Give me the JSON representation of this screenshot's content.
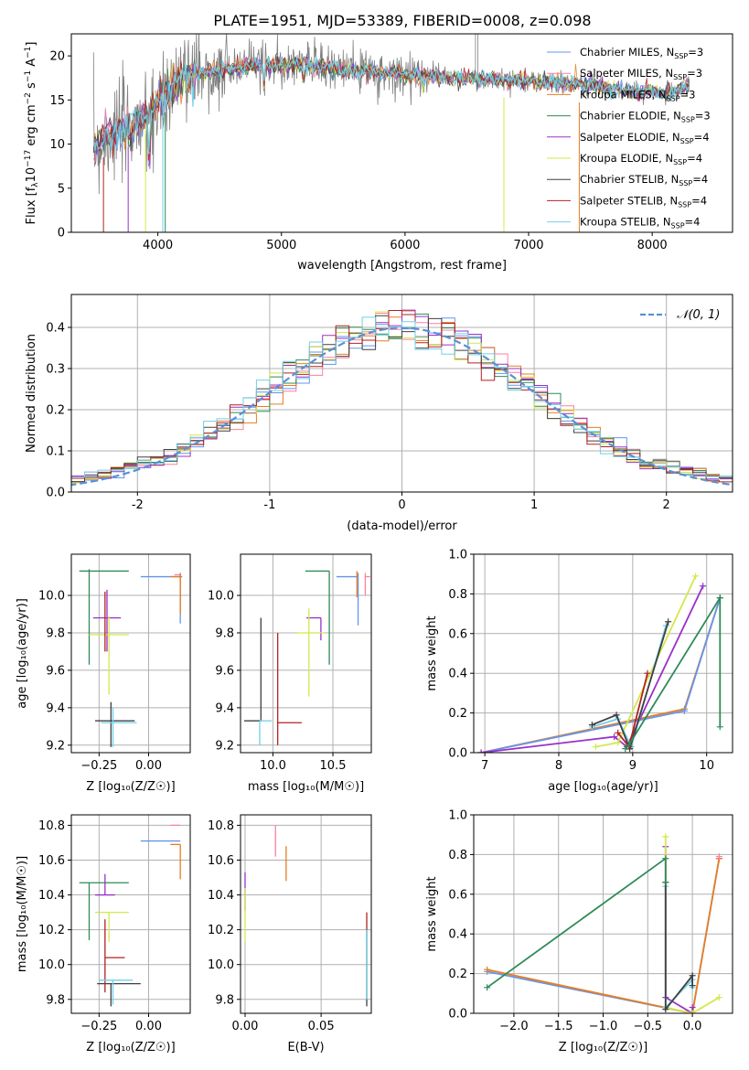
{
  "figure": {
    "title": "PLATE=1951, MJD=53389, FIBERID=0008, z=0.098"
  },
  "legend_entries": [
    {
      "name": "Chabrier MILES, N",
      "sub": "SSP",
      "tail": "=3",
      "color": "#6495ed"
    },
    {
      "name": "Salpeter MILES, N",
      "sub": "SSP",
      "tail": "=3",
      "color": "#ff7f9f"
    },
    {
      "name": "Kroupa MILES, N",
      "sub": "SSP",
      "tail": "=3",
      "color": "#e67e22"
    },
    {
      "name": "Chabrier ELODIE, N",
      "sub": "SSP",
      "tail": "=3",
      "color": "#2e8b57"
    },
    {
      "name": "Salpeter ELODIE, N",
      "sub": "SSP",
      "tail": "=4",
      "color": "#9b30c8"
    },
    {
      "name": "Kroupa ELODIE, N",
      "sub": "SSP",
      "tail": "=4",
      "color": "#d4e84a"
    },
    {
      "name": "Chabrier STELIB, N",
      "sub": "SSP",
      "tail": "=4",
      "color": "#404040"
    },
    {
      "name": "Salpeter STELIB, N",
      "sub": "SSP",
      "tail": "=4",
      "color": "#b22222"
    },
    {
      "name": "Kroupa STELIB, N",
      "sub": "SSP",
      "tail": "=4",
      "color": "#70d0e8"
    }
  ],
  "colors": {
    "data_spectrum": "#7f7f7f",
    "normal_curve": "#5b8fd6",
    "grid": "#b0b0b0"
  },
  "chart_data": [
    {
      "id": "spectrum",
      "type": "line",
      "xlabel": "wavelength [Angstrom, rest frame]",
      "ylabel": "Flux [f",
      "ylabel_full": "Flux [fλ10⁻¹⁷ erg cm⁻² s⁻¹ A⁻¹]",
      "xlim": [
        3300,
        8650
      ],
      "ylim": [
        0,
        22.5
      ],
      "xticks": [
        4000,
        5000,
        6000,
        7000,
        8000
      ],
      "yticks": [
        0,
        5,
        10,
        15,
        20
      ],
      "grid": false,
      "legend_position": "upper-right",
      "continuum_nodes": [
        [
          3480,
          9.5
        ],
        [
          3600,
          11.0
        ],
        [
          3750,
          11.5
        ],
        [
          3900,
          13.5
        ],
        [
          4050,
          15.5
        ],
        [
          4200,
          17.5
        ],
        [
          4500,
          18.5
        ],
        [
          4800,
          19.0
        ],
        [
          5100,
          19.0
        ],
        [
          5400,
          18.6
        ],
        [
          5700,
          18.3
        ],
        [
          6000,
          17.8
        ],
        [
          6300,
          17.6
        ],
        [
          6600,
          17.4
        ],
        [
          6900,
          17.2
        ],
        [
          7200,
          17.0
        ],
        [
          7500,
          16.6
        ],
        [
          7800,
          16.0
        ],
        [
          8100,
          15.8
        ],
        [
          8300,
          16.4
        ]
      ]
    },
    {
      "id": "residuals",
      "type": "bar",
      "xlabel": "(data-model)/error",
      "ylabel": "Normed distribution",
      "xlim": [
        -2.5,
        2.5
      ],
      "ylim": [
        0,
        0.48
      ],
      "xticks": [
        -2,
        -1,
        0,
        1,
        2
      ],
      "yticks": [
        0.0,
        0.1,
        0.2,
        0.3,
        0.4
      ],
      "grid": true,
      "legend_position": "upper-right",
      "legend_label": "𝒩(0, 1)",
      "bin_width": 0.1
    },
    {
      "id": "age_vs_Z",
      "type": "scatter",
      "xlabel": "Z [log₁₀(Z/Z☉)]",
      "ylabel": "age  [log₁₀(age/yr)]",
      "xlim": [
        -0.39,
        0.21
      ],
      "ylim": [
        9.16,
        10.22
      ],
      "xticks": [
        -0.25,
        0.0
      ],
      "xticklabels": [
        "−0.25",
        "0.00"
      ],
      "yticks": [
        9.2,
        9.4,
        9.6,
        9.8,
        10.0
      ],
      "grid": true,
      "points": [
        {
          "c": "#6495ed",
          "x": 0.16,
          "y": 10.1,
          "xe": [
            0.2,
            0.01
          ],
          "ye": [
            0.25,
            0.02
          ]
        },
        {
          "c": "#ff7f9f",
          "x": 0.16,
          "y": 10.11,
          "xe": [
            0.03,
            0.0
          ],
          "ye": [
            0.06,
            0.01
          ]
        },
        {
          "c": "#e67e22",
          "x": 0.16,
          "y": 10.1,
          "xe": [
            0.05,
            0.0
          ],
          "ye": [
            0.2,
            0.02
          ]
        },
        {
          "c": "#2e8b57",
          "x": -0.3,
          "y": 10.13,
          "xe": [
            0.05,
            0.2
          ],
          "ye": [
            0.5,
            0.01
          ]
        },
        {
          "c": "#9b30c8",
          "x": -0.21,
          "y": 9.88,
          "xe": [
            0.07,
            0.07
          ],
          "ye": [
            0.18,
            0.15
          ]
        },
        {
          "c": "#d4e84a",
          "x": -0.2,
          "y": 9.79,
          "xe": [
            0.1,
            0.1
          ],
          "ye": [
            0.32,
            0.1
          ]
        },
        {
          "c": "#404040",
          "x": -0.19,
          "y": 9.33,
          "xe": [
            0.08,
            0.12
          ],
          "ye": [
            0.14,
            0.1
          ]
        },
        {
          "c": "#b22222",
          "x": -0.22,
          "y": 9.82,
          "xe": [
            0.0,
            0.0
          ],
          "ye": [
            0.12,
            0.2
          ]
        },
        {
          "c": "#70d0e8",
          "x": -0.18,
          "y": 9.32,
          "xe": [
            0.06,
            0.12
          ],
          "ye": [
            0.13,
            0.08
          ]
        }
      ]
    },
    {
      "id": "age_vs_mass",
      "type": "scatter",
      "xlabel": "mass [log₁₀(M/M☉)]",
      "ylabel": "",
      "xlim": [
        9.73,
        10.82
      ],
      "ylim": [
        9.16,
        10.22
      ],
      "xticks": [
        10.0,
        10.5
      ],
      "xticklabels": [
        "10.0",
        "10.5"
      ],
      "yticks": [
        9.2,
        9.4,
        9.6,
        9.8,
        10.0
      ],
      "grid": true,
      "points": [
        {
          "c": "#6495ed",
          "x": 10.71,
          "y": 10.1,
          "xe": [
            0.18,
            0.0
          ],
          "ye": [
            0.26,
            0.02
          ]
        },
        {
          "c": "#ff7f9f",
          "x": 10.77,
          "y": 10.1,
          "xe": [
            0.0,
            0.04
          ],
          "ye": [
            0.1,
            0.02
          ]
        },
        {
          "c": "#e67e22",
          "x": 10.7,
          "y": 10.11,
          "xe": [
            0.0,
            0.01
          ],
          "ye": [
            0.12,
            0.02
          ]
        },
        {
          "c": "#2e8b57",
          "x": 10.47,
          "y": 10.13,
          "xe": [
            0.2,
            0.0
          ],
          "ye": [
            0.5,
            0.0
          ]
        },
        {
          "c": "#9b30c8",
          "x": 10.4,
          "y": 9.88,
          "xe": [
            0.12,
            0.0
          ],
          "ye": [
            0.12,
            0.0
          ]
        },
        {
          "c": "#d4e84a",
          "x": 10.3,
          "y": 9.8,
          "xe": [
            0.1,
            0.13
          ],
          "ye": [
            0.34,
            0.13
          ]
        },
        {
          "c": "#404040",
          "x": 9.9,
          "y": 9.33,
          "xe": [
            0.14,
            0.0
          ],
          "ye": [
            0.0,
            0.55
          ]
        },
        {
          "c": "#b22222",
          "x": 10.04,
          "y": 9.32,
          "xe": [
            0.0,
            0.2
          ],
          "ye": [
            0.12,
            0.48
          ]
        },
        {
          "c": "#70d0e8",
          "x": 9.89,
          "y": 9.33,
          "xe": [
            0.0,
            0.1
          ],
          "ye": [
            0.13,
            0.0
          ]
        }
      ]
    },
    {
      "id": "weight_vs_age",
      "type": "line",
      "xlabel": "age  [log₁₀(age/yr)]",
      "ylabel": "mass weight",
      "xlim": [
        6.85,
        10.35
      ],
      "ylim": [
        0,
        1.0
      ],
      "xticks": [
        7,
        8,
        9,
        10
      ],
      "yticks": [
        0.0,
        0.2,
        0.4,
        0.6,
        0.8,
        1.0
      ],
      "grid": true,
      "series": [
        {
          "c": "#e67e22",
          "pts": [
            [
              6.95,
              0.0
            ],
            [
              9.7,
              0.22
            ],
            [
              10.18,
              0.78
            ]
          ]
        },
        {
          "c": "#6495ed",
          "pts": [
            [
              6.95,
              0.0
            ],
            [
              9.7,
              0.21
            ],
            [
              10.18,
              0.78
            ]
          ]
        },
        {
          "c": "#9b30c8",
          "pts": [
            [
              6.95,
              0.0
            ],
            [
              8.75,
              0.08
            ],
            [
              8.92,
              0.03
            ],
            [
              9.95,
              0.84
            ]
          ]
        },
        {
          "c": "#d4e84a",
          "pts": [
            [
              8.5,
              0.03
            ],
            [
              8.8,
              0.05
            ],
            [
              9.85,
              0.89
            ]
          ]
        },
        {
          "c": "#70d0e8",
          "pts": [
            [
              8.45,
              0.13
            ],
            [
              8.8,
              0.17
            ],
            [
              8.98,
              0.03
            ],
            [
              9.45,
              0.64
            ]
          ]
        },
        {
          "c": "#404040",
          "pts": [
            [
              8.45,
              0.14
            ],
            [
              8.78,
              0.19
            ],
            [
              8.96,
              0.02
            ],
            [
              9.48,
              0.66
            ]
          ]
        },
        {
          "c": "#b22222",
          "pts": [
            [
              8.8,
              0.1
            ],
            [
              8.95,
              0.03
            ],
            [
              9.2,
              0.4
            ]
          ]
        },
        {
          "c": "#2e8b57",
          "pts": [
            [
              8.9,
              0.02
            ],
            [
              8.95,
              0.04
            ],
            [
              10.18,
              0.78
            ],
            [
              10.18,
              0.13
            ]
          ]
        }
      ]
    },
    {
      "id": "mass_vs_Z",
      "type": "scatter",
      "xlabel": "Z [log₁₀(Z/Z☉)]",
      "ylabel": "mass [log₁₀(M/M☉)]",
      "xlim": [
        -0.39,
        0.21
      ],
      "ylim": [
        9.72,
        10.86
      ],
      "xticks": [
        -0.25,
        0.0
      ],
      "xticklabels": [
        "−0.25",
        "0.00"
      ],
      "yticks": [
        9.8,
        10.0,
        10.2,
        10.4,
        10.6,
        10.8
      ],
      "grid": true,
      "points": [
        {
          "c": "#6495ed",
          "x": 0.16,
          "y": 10.71,
          "xe": [
            0.2,
            0.0
          ],
          "ye": [
            0.0,
            0.0
          ]
        },
        {
          "c": "#ff7f9f",
          "x": 0.16,
          "y": 10.8,
          "xe": [
            0.05,
            0.0
          ],
          "ye": [
            0.0,
            0.0
          ]
        },
        {
          "c": "#e67e22",
          "x": 0.16,
          "y": 10.69,
          "xe": [
            0.05,
            0.0
          ],
          "ye": [
            0.2,
            0.0
          ]
        },
        {
          "c": "#2e8b57",
          "x": -0.3,
          "y": 10.47,
          "xe": [
            0.05,
            0.2
          ],
          "ye": [
            0.33,
            0.0
          ]
        },
        {
          "c": "#9b30c8",
          "x": -0.22,
          "y": 10.4,
          "xe": [
            0.05,
            0.05
          ],
          "ye": [
            0.0,
            0.12
          ]
        },
        {
          "c": "#d4e84a",
          "x": -0.2,
          "y": 10.3,
          "xe": [
            0.07,
            0.1
          ],
          "ye": [
            0.17,
            0.0
          ]
        },
        {
          "c": "#404040",
          "x": -0.19,
          "y": 9.89,
          "xe": [
            0.07,
            0.15
          ],
          "ye": [
            0.13,
            0.0
          ]
        },
        {
          "c": "#b22222",
          "x": -0.22,
          "y": 10.04,
          "xe": [
            0.0,
            0.1
          ],
          "ye": [
            0.2,
            0.22
          ]
        },
        {
          "c": "#70d0e8",
          "x": -0.18,
          "y": 9.91,
          "xe": [
            0.07,
            0.1
          ],
          "ye": [
            0.14,
            0.0
          ]
        }
      ]
    },
    {
      "id": "mass_vs_ebv",
      "type": "scatter",
      "xlabel": "E(B-V)",
      "ylabel": "",
      "xlim": [
        -0.003,
        0.083
      ],
      "ylim": [
        9.72,
        10.86
      ],
      "xticks": [
        0.0,
        0.05
      ],
      "xticklabels": [
        "0.00",
        "0.05"
      ],
      "yticks": [
        9.8,
        10.0,
        10.2,
        10.4,
        10.6,
        10.8
      ],
      "grid": true,
      "points": [
        {
          "c": "#ff7f9f",
          "x": 0.02,
          "y": 10.7,
          "xe": [
            0,
            0
          ],
          "ye": [
            0.08,
            0.1
          ]
        },
        {
          "c": "#e67e22",
          "x": 0.027,
          "y": 10.6,
          "xe": [
            0,
            0
          ],
          "ye": [
            0.12,
            0.08
          ]
        },
        {
          "c": "#9b30c8",
          "x": 0.0,
          "y": 10.43,
          "xe": [
            0,
            0
          ],
          "ye": [
            0.12,
            0.1
          ]
        },
        {
          "c": "#d4e84a",
          "x": 0.0,
          "y": 10.3,
          "xe": [
            0,
            0
          ],
          "ye": [
            0.17,
            0.14
          ]
        },
        {
          "c": "#b22222",
          "x": 0.08,
          "y": 10.2,
          "xe": [
            0,
            0
          ],
          "ye": [
            0.0,
            0.1
          ]
        },
        {
          "c": "#404040",
          "x": 0.08,
          "y": 9.95,
          "xe": [
            0,
            0
          ],
          "ye": [
            0.19,
            0.25
          ]
        },
        {
          "c": "#70d0e8",
          "x": 0.08,
          "y": 9.95,
          "xe": [
            0,
            0
          ],
          "ye": [
            0.15,
            0.25
          ]
        }
      ]
    },
    {
      "id": "weight_vs_Z",
      "type": "line",
      "xlabel": "Z [log₁₀(Z/Z☉)]",
      "ylabel": "mass weight",
      "xlim": [
        -2.45,
        0.45
      ],
      "ylim": [
        0,
        1.0
      ],
      "xticks": [
        -2.0,
        -1.5,
        -1.0,
        -0.5,
        0.0
      ],
      "xticklabels": [
        "−2.0",
        "−1.5",
        "−1.0",
        "−0.5",
        "0.0"
      ],
      "yticks": [
        0.0,
        0.2,
        0.4,
        0.6,
        0.8,
        1.0
      ],
      "grid": true,
      "series": [
        {
          "c": "#6495ed",
          "pts": [
            [
              -2.3,
              0.21
            ],
            [
              0.0,
              0.0
            ],
            [
              0.3,
              0.78
            ]
          ]
        },
        {
          "c": "#e67e22",
          "pts": [
            [
              -2.3,
              0.22
            ],
            [
              0.0,
              0.0
            ],
            [
              0.3,
              0.78
            ]
          ]
        },
        {
          "c": "#9b30c8",
          "pts": [
            [
              -0.3,
              0.84
            ],
            [
              -0.3,
              0.08
            ],
            [
              0.0,
              0.0
            ],
            [
              0.0,
              0.03
            ]
          ]
        },
        {
          "c": "#d4e84a",
          "pts": [
            [
              -0.3,
              0.89
            ],
            [
              -0.3,
              0.03
            ],
            [
              0.0,
              0.0
            ],
            [
              0.3,
              0.08
            ]
          ]
        },
        {
          "c": "#70d0e8",
          "pts": [
            [
              -0.3,
              0.64
            ],
            [
              -0.3,
              0.03
            ],
            [
              0.0,
              0.17
            ],
            [
              0.0,
              0.13
            ]
          ]
        },
        {
          "c": "#404040",
          "pts": [
            [
              -0.3,
              0.66
            ],
            [
              -0.3,
              0.02
            ],
            [
              0.0,
              0.19
            ],
            [
              0.0,
              0.14
            ]
          ]
        },
        {
          "c": "#2e8b57",
          "pts": [
            [
              -2.3,
              0.13
            ],
            [
              -0.3,
              0.78
            ],
            [
              -0.3,
              0.66
            ]
          ]
        },
        {
          "c": "#ff7f9f",
          "pts": [
            [
              0.3,
              0.79
            ]
          ]
        }
      ]
    }
  ]
}
